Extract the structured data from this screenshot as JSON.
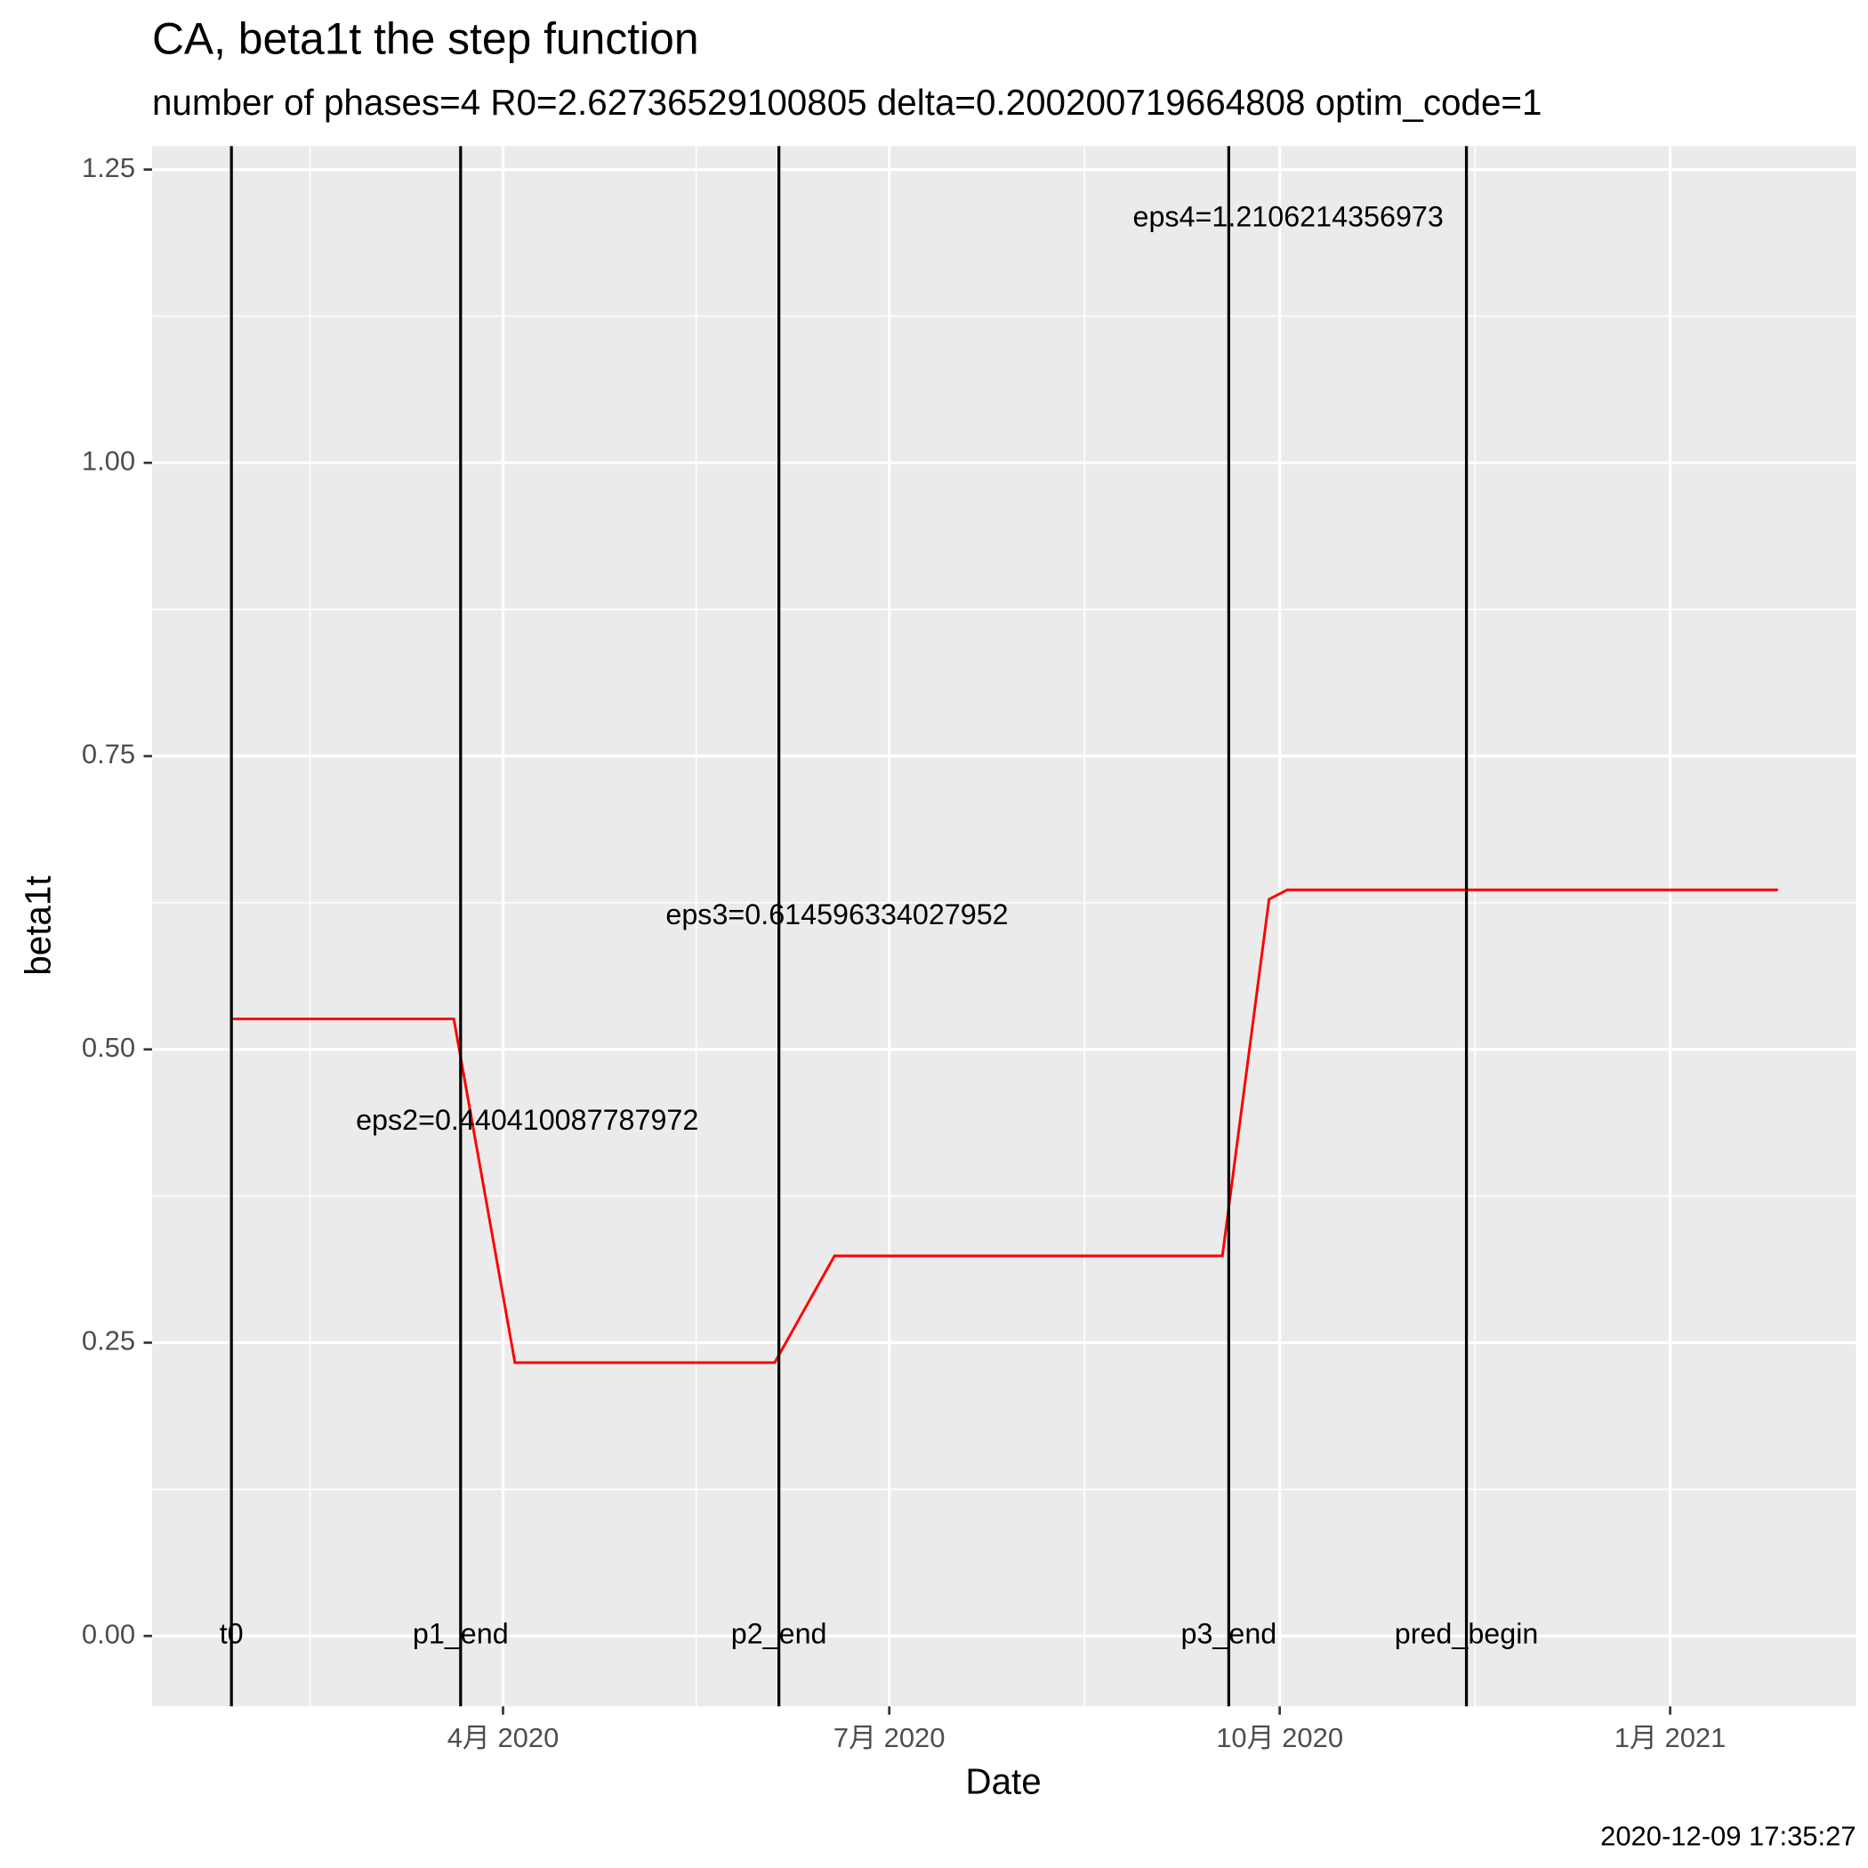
{
  "chart_data": {
    "type": "line",
    "title": "CA, beta1t the step function",
    "subtitle": "number of phases=4   R0=2.62736529100805   delta=0.200200719664808   optim_code=1",
    "caption": "2020-12-09 17:35:27",
    "x_label": "Date",
    "y_label": "beta1t",
    "x": [
      27,
      79.4,
      93.8,
      155,
      169.1,
      260.5,
      271.5,
      275.8,
      391.4
    ],
    "series": [
      {
        "color": "#ff0000",
        "values": [
          0.526,
          0.526,
          0.233,
          0.233,
          0.324,
          0.324,
          0.628,
          0.636,
          0.636
        ]
      }
    ],
    "vlines": [
      {
        "x": 27,
        "label": "t0"
      },
      {
        "x": 81,
        "label": "p1_end"
      },
      {
        "x": 156,
        "label": "p2_end"
      },
      {
        "x": 262,
        "label": "p3_end"
      },
      {
        "x": 318,
        "label": "pred_begin"
      }
    ],
    "annotations": [
      {
        "x": 96.7,
        "y": 0.438,
        "text": "eps2=0.440410087787972"
      },
      {
        "x": 169.7,
        "y": 0.613,
        "text": "eps3=0.614596334027952"
      },
      {
        "x": 276,
        "y": 1.208,
        "text": "eps4=1.2106214356973"
      }
    ],
    "xlim": [
      8.3,
      409.8
    ],
    "ylim": [
      -0.06,
      1.27
    ],
    "xticks": [
      {
        "value": 91,
        "label": "4月 2020"
      },
      {
        "value": 182,
        "label": "7月 2020"
      },
      {
        "value": 274,
        "label": "10月 2020"
      },
      {
        "value": 366,
        "label": "1月 2021"
      }
    ],
    "yticks": [
      {
        "value": 0,
        "label": "0.00"
      },
      {
        "value": 0.25,
        "label": "0.25"
      },
      {
        "value": 0.5,
        "label": "0.50"
      },
      {
        "value": 0.75,
        "label": "0.75"
      },
      {
        "value": 1,
        "label": "1.00"
      },
      {
        "value": 1.25,
        "label": "1.25"
      }
    ],
    "grid": true
  }
}
